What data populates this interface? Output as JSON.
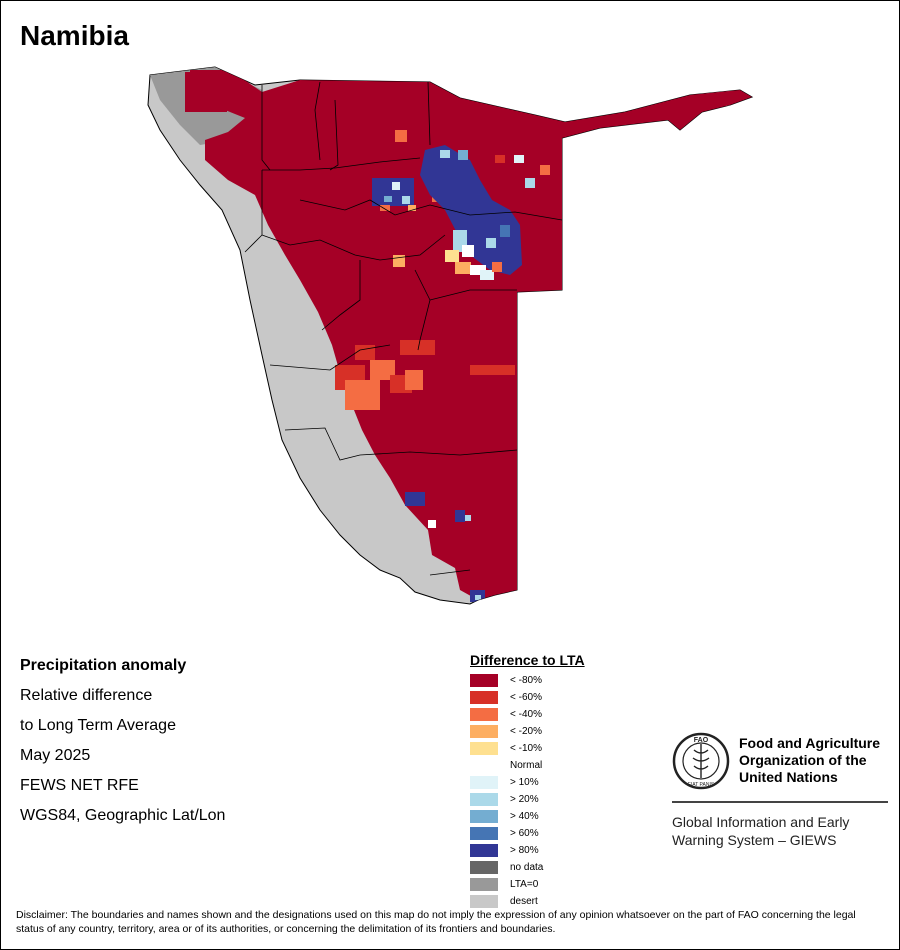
{
  "map": {
    "title": "Namibia",
    "colors": {
      "lt80": "#A50026",
      "lt60": "#D73027",
      "lt40": "#F46D43",
      "lt20": "#FDAE61",
      "lt10": "#FEE090",
      "normal": "#FFFFFF",
      "gt10": "#E0F3F8",
      "gt20": "#ABD9E9",
      "gt40": "#74ADD1",
      "gt60": "#4575B4",
      "gt80": "#313695",
      "nodata": "#666666",
      "lta0": "#999999",
      "desert": "#C8C8C8"
    }
  },
  "info": {
    "heading": "Precipitation anomaly",
    "line1": "Relative difference",
    "line2": "to Long Term Average",
    "period": "May 2025",
    "source": "FEWS NET RFE",
    "projection": "WGS84, Geographic Lat/Lon"
  },
  "legend": {
    "title": "Difference to LTA",
    "items": [
      {
        "label": "< -80%",
        "color": "#A50026"
      },
      {
        "label": "< -60%",
        "color": "#D73027"
      },
      {
        "label": "< -40%",
        "color": "#F46D43"
      },
      {
        "label": "< -20%",
        "color": "#FDAE61"
      },
      {
        "label": "< -10%",
        "color": "#FEE090"
      },
      {
        "label": "Normal",
        "color": "#FFFFFF"
      },
      {
        "label": "> 10%",
        "color": "#E0F3F8"
      },
      {
        "label": "> 20%",
        "color": "#ABD9E9"
      },
      {
        "label": "> 40%",
        "color": "#74ADD1"
      },
      {
        "label": "> 60%",
        "color": "#4575B4"
      },
      {
        "label": "> 80%",
        "color": "#313695"
      }
    ],
    "extra": [
      {
        "label": "no data",
        "color": "#666666"
      },
      {
        "label": "LTA=0",
        "color": "#999999"
      },
      {
        "label": "desert",
        "color": "#C8C8C8"
      }
    ]
  },
  "fao": {
    "name_line1": "Food and Agriculture",
    "name_line2": "Organization of the",
    "name_line3": "United Nations",
    "giews_line1": "Global Information and Early",
    "giews_line2": "Warning System – GIEWS",
    "logo_text": "FAO",
    "logo_motto": "FIAT PANIS"
  },
  "disclaimer": "Disclaimer: The boundaries and names shown and the designations used on this map do not imply the expression of any opinion whatsoever on the part of FAO concerning the legal status of any country, territory, area or of its authorities, or concerning the delimitation of its frontiers and boundaries."
}
